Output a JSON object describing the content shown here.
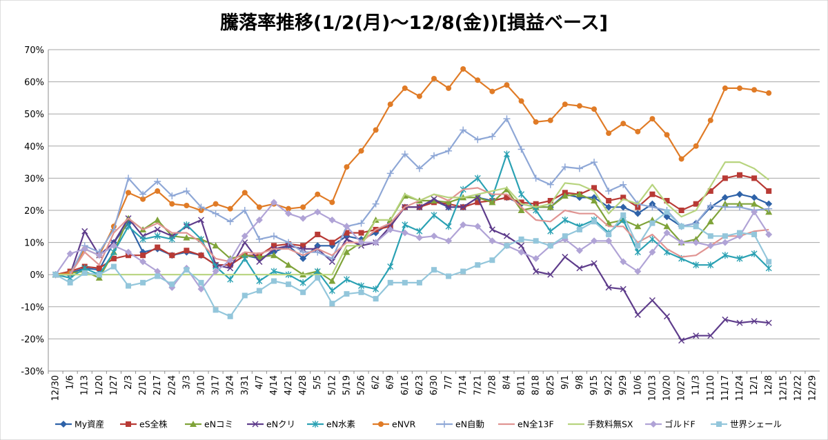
{
  "chart_data": {
    "type": "line",
    "title": "騰落率推移(1/2(月)～12/8(金))[損益ベース]",
    "xlabel": "",
    "ylabel": "",
    "ylim": [
      -30,
      70
    ],
    "y_ticks": [
      "-30%",
      "-20%",
      "-10%",
      "0%",
      "10%",
      "20%",
      "30%",
      "40%",
      "50%",
      "60%",
      "70%"
    ],
    "grid": "horizontal",
    "legend_position": "bottom",
    "categories": [
      "12/30",
      "1/6",
      "1/13",
      "1/20",
      "1/27",
      "2/3",
      "2/10",
      "2/17",
      "2/24",
      "3/3",
      "3/10",
      "3/17",
      "3/24",
      "3/31",
      "4/7",
      "4/14",
      "4/21",
      "4/28",
      "5/5",
      "5/12",
      "5/19",
      "5/26",
      "6/2",
      "6/9",
      "6/16",
      "6/23",
      "6/30",
      "7/7",
      "7/14",
      "7/21",
      "7/28",
      "8/4",
      "8/11",
      "8/18",
      "8/25",
      "9/1",
      "9/8",
      "9/15",
      "9/22",
      "9/29",
      "10/6",
      "10/13",
      "10/20",
      "10/27",
      "11/3",
      "11/10",
      "11/17",
      "11/24",
      "12/1",
      "12/8",
      "12/15",
      "12/22",
      "12/29"
    ],
    "series": [
      {
        "name": "My資産",
        "color": "#2e62a8",
        "marker": "diamond",
        "values": [
          0,
          0.5,
          2,
          1.5,
          10,
          16,
          7,
          8,
          6,
          7,
          6,
          3,
          3,
          6,
          5,
          7,
          9,
          5,
          9,
          9,
          12,
          11,
          13,
          16,
          21,
          21,
          23,
          21,
          21,
          24,
          23,
          24,
          22,
          21,
          21,
          25,
          24,
          24,
          21,
          21,
          19,
          22,
          18,
          15,
          16,
          21,
          24,
          25,
          24,
          22,
          null,
          null,
          null
        ]
      },
      {
        "name": "eS全株",
        "color": "#b83a35",
        "marker": "square",
        "values": [
          0,
          1,
          2.5,
          2,
          5,
          6,
          6,
          8.5,
          6,
          7.5,
          6,
          3,
          3,
          6,
          6,
          9,
          9.5,
          9,
          12.5,
          10,
          13,
          13,
          14,
          15,
          21,
          21,
          22.5,
          22,
          21,
          22.5,
          23,
          24,
          22.5,
          22,
          23,
          25.5,
          25,
          27,
          23,
          24,
          21,
          25,
          23,
          20,
          22,
          26,
          30,
          31,
          30,
          26,
          null,
          null,
          null
        ]
      },
      {
        "name": "eNコミ",
        "color": "#7fa339",
        "marker": "triangle",
        "values": [
          0,
          0.5,
          1,
          -1,
          7,
          17.5,
          14,
          17,
          12,
          11.5,
          11,
          9,
          5,
          6,
          5.5,
          6,
          3,
          0,
          1,
          -2,
          7,
          10,
          17,
          17,
          24.5,
          23,
          23,
          22.5,
          24,
          24,
          22.5,
          26.5,
          20,
          21,
          21,
          24.5,
          25,
          23,
          16,
          17,
          15,
          17,
          15,
          10,
          11,
          16.5,
          22,
          22,
          22,
          19.5,
          null,
          null,
          null
        ]
      },
      {
        "name": "eNクリ",
        "color": "#5e3c8b",
        "marker": "x",
        "values": [
          0,
          0,
          13.5,
          6,
          10,
          17.5,
          12,
          14,
          12,
          15,
          17,
          3,
          2,
          10,
          4,
          8,
          9,
          8,
          8,
          4,
          11,
          9,
          10,
          15,
          21,
          21,
          23.5,
          21,
          21,
          24,
          14,
          12,
          9,
          1,
          0,
          5.5,
          2,
          3.5,
          -4,
          -4.5,
          -12.5,
          -8,
          -13,
          -20.5,
          -19,
          -19,
          -14,
          -15,
          -14.5,
          -15,
          null,
          null,
          null
        ]
      },
      {
        "name": "eN水素",
        "color": "#2aa1b3",
        "marker": "asterisk",
        "values": [
          0,
          -1,
          2,
          0,
          7,
          15,
          11,
          12,
          11,
          15.5,
          11,
          2.5,
          -1.5,
          5,
          -2,
          1,
          0,
          -2.5,
          1,
          -5,
          -1.5,
          -3.5,
          -4.5,
          2.5,
          15.5,
          13.5,
          18.5,
          15,
          26.5,
          30,
          24,
          37.5,
          25,
          20,
          13.5,
          17,
          15,
          17,
          13,
          17,
          7,
          11,
          7,
          5,
          3,
          3,
          6,
          5,
          6.5,
          2,
          null,
          null,
          null
        ]
      },
      {
        "name": "eNVR",
        "color": "#e07b26",
        "marker": "circle",
        "values": [
          0,
          0.5,
          8,
          6,
          15,
          25.5,
          23.5,
          26,
          22,
          21.5,
          20,
          22,
          20.5,
          25.5,
          21,
          22,
          20.5,
          21,
          25,
          22.5,
          33.5,
          38.5,
          45,
          53,
          58,
          55.5,
          61,
          58,
          64,
          60.5,
          57,
          59,
          54,
          47.5,
          48,
          53,
          52.5,
          51.5,
          44,
          47,
          44.5,
          48.5,
          43.5,
          36,
          40,
          48,
          58,
          58,
          57.5,
          56.5,
          null,
          null,
          null
        ]
      },
      {
        "name": "eN自動",
        "color": "#8ea7d6",
        "marker": "plus",
        "values": [
          0,
          0,
          9,
          7,
          14,
          30,
          25,
          29,
          24.5,
          26,
          21,
          19,
          16.5,
          20,
          11,
          12,
          10,
          7,
          7,
          5,
          15,
          16,
          22,
          31.5,
          37.5,
          33,
          37,
          38.5,
          45,
          42,
          43,
          48.5,
          39,
          30,
          28,
          33.5,
          33,
          35,
          26,
          28,
          22,
          21,
          20,
          15,
          16,
          21.5,
          21,
          21,
          20,
          20.5,
          null,
          null,
          null
        ]
      },
      {
        "name": "eN全13F",
        "color": "#e09492",
        "marker": "none",
        "values": [
          0,
          0,
          7,
          3,
          13,
          17.5,
          14,
          16,
          13,
          13,
          10,
          5,
          4,
          7,
          6.5,
          8,
          8,
          6,
          8,
          6,
          10,
          10,
          14,
          16,
          21,
          23,
          25,
          23,
          26.5,
          27,
          25,
          25,
          21,
          17,
          16.5,
          20,
          19,
          19,
          15,
          15,
          10,
          12.5,
          8,
          5.5,
          6,
          9,
          12,
          12,
          13.5,
          14,
          null,
          null,
          null
        ]
      },
      {
        "name": "手数料無SX",
        "color": "#b7d47e",
        "marker": "none",
        "values": [
          0,
          0,
          0,
          0,
          0,
          0,
          0,
          0,
          0,
          0,
          0,
          0,
          0,
          0,
          0,
          0,
          0,
          0,
          0,
          0,
          9,
          9,
          17,
          17,
          25,
          23,
          25,
          24,
          24,
          25,
          26,
          27,
          22,
          21,
          22,
          28.5,
          28,
          26,
          19,
          23.5,
          22,
          28,
          22,
          18,
          20,
          27.5,
          35,
          35,
          33,
          29.5,
          null,
          null,
          null
        ]
      },
      {
        "name": "ゴルドF",
        "color": "#b0a3d6",
        "marker": "diamond",
        "values": [
          0,
          6.5,
          8,
          6,
          9,
          7,
          4,
          1,
          -4,
          2,
          -4.5,
          1,
          4.5,
          12,
          17,
          22.5,
          19,
          17.5,
          19.5,
          17,
          15,
          10,
          10,
          14,
          13,
          11.5,
          12,
          10.5,
          15.5,
          15,
          10.5,
          9,
          7,
          5,
          9,
          11,
          7.5,
          10.5,
          10.5,
          4,
          1,
          7,
          13,
          10,
          10,
          9,
          10,
          12,
          19.5,
          12.5,
          null,
          null,
          null
        ]
      },
      {
        "name": "世界シェール",
        "color": "#93c6db",
        "marker": "square",
        "values": [
          0,
          -2.5,
          0.5,
          0,
          2.5,
          -3.5,
          -2.5,
          -0.5,
          -3,
          1.5,
          -2.5,
          -11,
          -13,
          -6.5,
          -5,
          -2,
          -3,
          -5.5,
          -1,
          -9,
          -6,
          -5.5,
          -7.5,
          -2.5,
          -2.5,
          -2.5,
          1.5,
          -0.5,
          1,
          3,
          4.5,
          9,
          11,
          10.5,
          9,
          12,
          14,
          16.5,
          12.5,
          18.5,
          9,
          16,
          19.5,
          15,
          15,
          12,
          12,
          13,
          12.5,
          4,
          null,
          null,
          null
        ]
      }
    ]
  }
}
